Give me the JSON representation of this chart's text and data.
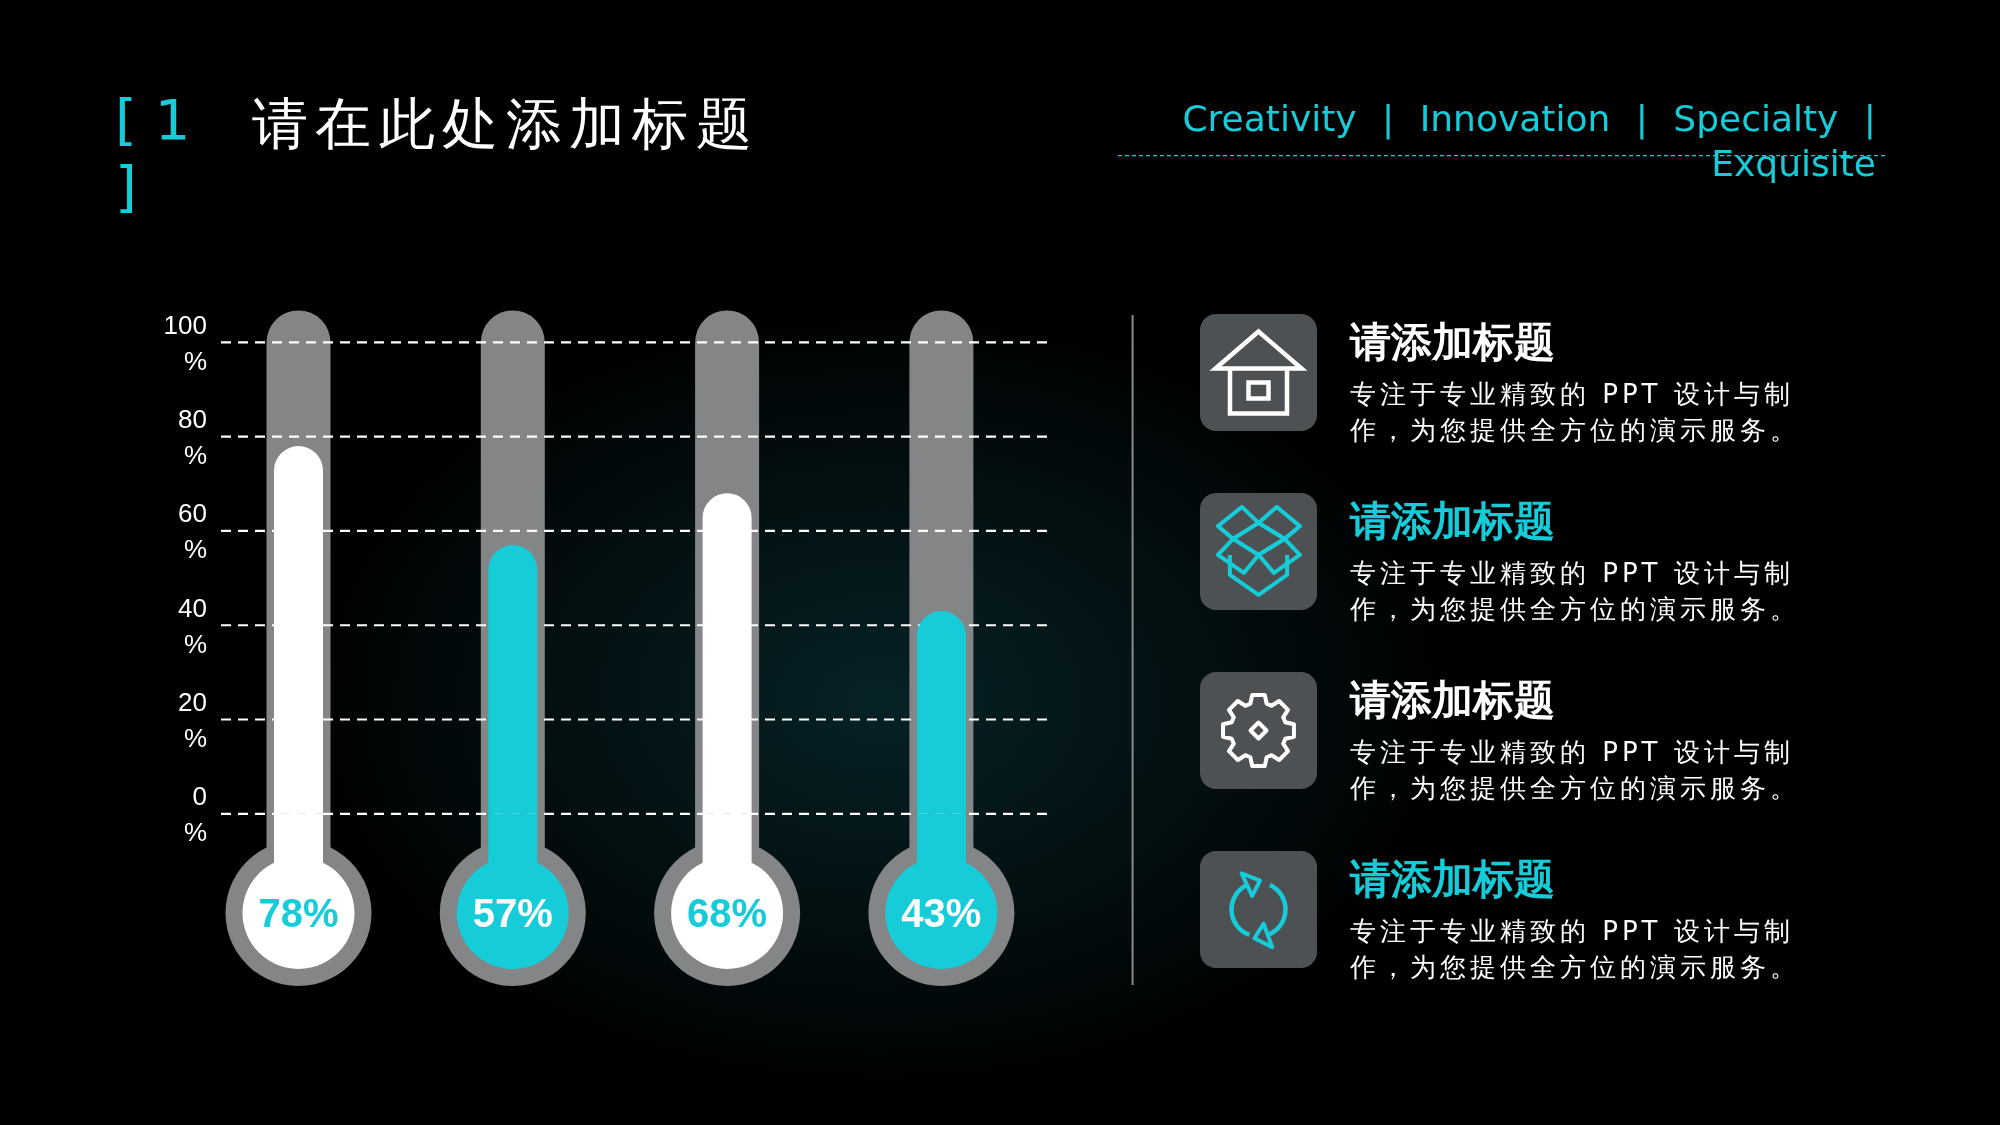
{
  "chart_data": [
    {
      "type": "bar",
      "title": "请在此处添加标题",
      "annotations": [
        "[ 1 ]"
      ],
      "categories": [
        null,
        null,
        null,
        null
      ],
      "values": [
        78,
        57,
        68,
        43
      ],
      "colors": [
        "#ffffff",
        "#16ccd9",
        "#ffffff",
        "#16ccd9"
      ],
      "value_labels": [
        "78%",
        "57%",
        "68%",
        "43%"
      ],
      "ylim": [
        0,
        100
      ],
      "yticks": [
        {
          "value": 0,
          "label": "0 %"
        },
        {
          "value": 20,
          "label": "20 %"
        },
        {
          "value": 40,
          "label": "40 %"
        },
        {
          "value": 60,
          "label": "60 %"
        },
        {
          "value": 80,
          "label": "80 %"
        },
        {
          "value": 100,
          "label": "100 %"
        }
      ],
      "grid": "y"
    },
    {
      "type": "other",
      "subtitle": "Creativity | Innovation | Specialty | Exquisite",
      "annotations": [
        "请添加标题",
        "专注于专业精致的 PPT 设计与制作，为您提供全方位的演示服务。",
        "请添加标题",
        "专注于专业精致的 PPT 设计与制作，为您提供全方位的演示服务。",
        "请添加标题",
        "专注于专业精致的 PPT 设计与制作，为您提供全方位的演示服务。",
        "请添加标题",
        "专注于专业精致的 PPT 设计与制作，为您提供全方位的演示服务。"
      ]
    }
  ]
}
